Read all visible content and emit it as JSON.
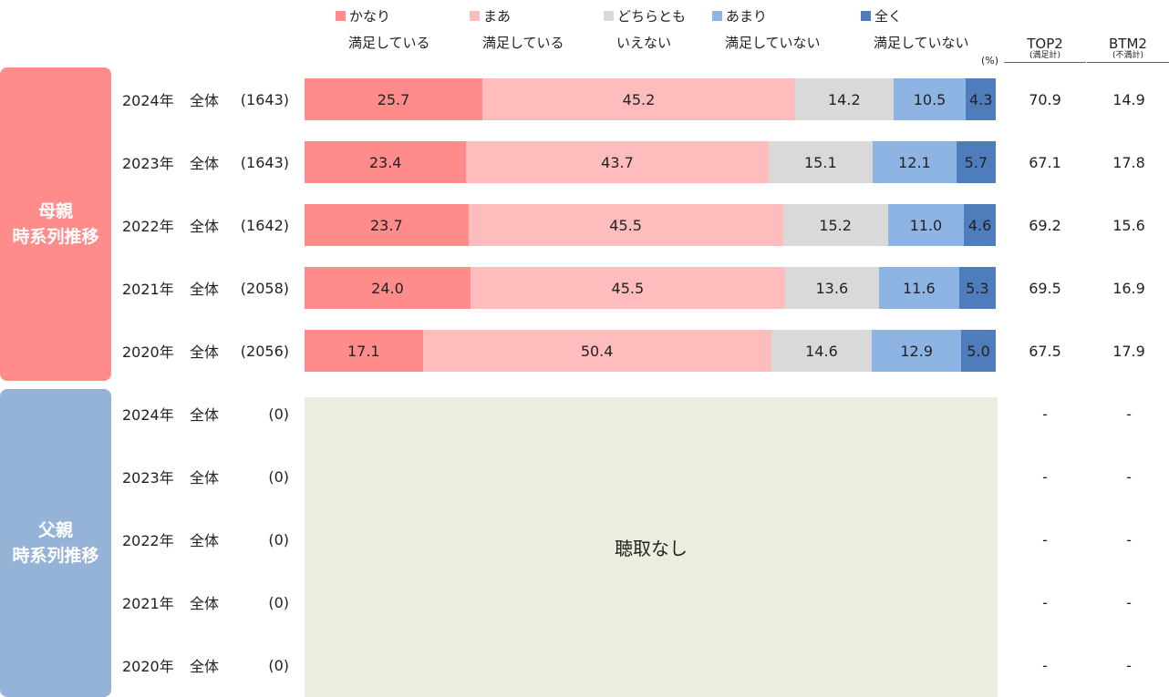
{
  "legend": [
    {
      "line1": "かなり",
      "line2": "満足している",
      "color": "#ff8b8b"
    },
    {
      "line1": "まあ",
      "line2": "満足している",
      "color": "#ffbcbc"
    },
    {
      "line1": "どちらとも",
      "line2": "いえない",
      "color": "#d9d9d9"
    },
    {
      "line1": "あまり",
      "line2": "満足していない",
      "color": "#8eb4e3"
    },
    {
      "line1": "全く",
      "line2": "満足していない",
      "color": "#4f7cba"
    }
  ],
  "unit": "(%)",
  "columns": {
    "top2": {
      "label": "TOP2",
      "sub": "(満足計)"
    },
    "btm2": {
      "label": "BTM2",
      "sub": "(不満計)"
    }
  },
  "groups": {
    "mother": {
      "line1": "母親",
      "line2": "時系列推移",
      "color": "#ff8b8b"
    },
    "father": {
      "line1": "父親",
      "line2": "時系列推移",
      "color": "#95b3d7"
    }
  },
  "no_data_label": "聴取なし",
  "chart_data": {
    "type": "bar",
    "orientation": "horizontal",
    "stacked": "percent",
    "series": [
      "かなり満足している",
      "まあ満足している",
      "どちらともいえない",
      "あまり満足していない",
      "全く満足していない"
    ],
    "mother_rows": [
      {
        "year": "2024年",
        "segment": "全体",
        "n": "(1643)",
        "values": [
          25.7,
          45.2,
          14.2,
          10.5,
          4.3
        ],
        "top2": "70.9",
        "btm2": "14.9"
      },
      {
        "year": "2023年",
        "segment": "全体",
        "n": "(1643)",
        "values": [
          23.4,
          43.7,
          15.1,
          12.1,
          5.7
        ],
        "top2": "67.1",
        "btm2": "17.8"
      },
      {
        "year": "2022年",
        "segment": "全体",
        "n": "(1642)",
        "values": [
          23.7,
          45.5,
          15.2,
          11.0,
          4.6
        ],
        "top2": "69.2",
        "btm2": "15.6"
      },
      {
        "year": "2021年",
        "segment": "全体",
        "n": "(2058)",
        "values": [
          24.0,
          45.5,
          13.6,
          11.6,
          5.3
        ],
        "top2": "69.5",
        "btm2": "16.9"
      },
      {
        "year": "2020年",
        "segment": "全体",
        "n": "(2056)",
        "values": [
          17.1,
          50.4,
          14.6,
          12.9,
          5.0
        ],
        "top2": "67.5",
        "btm2": "17.9"
      }
    ],
    "father_rows": [
      {
        "year": "2024年",
        "segment": "全体",
        "n": "(0)",
        "top2": "-",
        "btm2": "-"
      },
      {
        "year": "2023年",
        "segment": "全体",
        "n": "(0)",
        "top2": "-",
        "btm2": "-"
      },
      {
        "year": "2022年",
        "segment": "全体",
        "n": "(0)",
        "top2": "-",
        "btm2": "-"
      },
      {
        "year": "2021年",
        "segment": "全体",
        "n": "(0)",
        "top2": "-",
        "btm2": "-"
      },
      {
        "year": "2020年",
        "segment": "全体",
        "n": "(0)",
        "top2": "-",
        "btm2": "-"
      }
    ]
  }
}
